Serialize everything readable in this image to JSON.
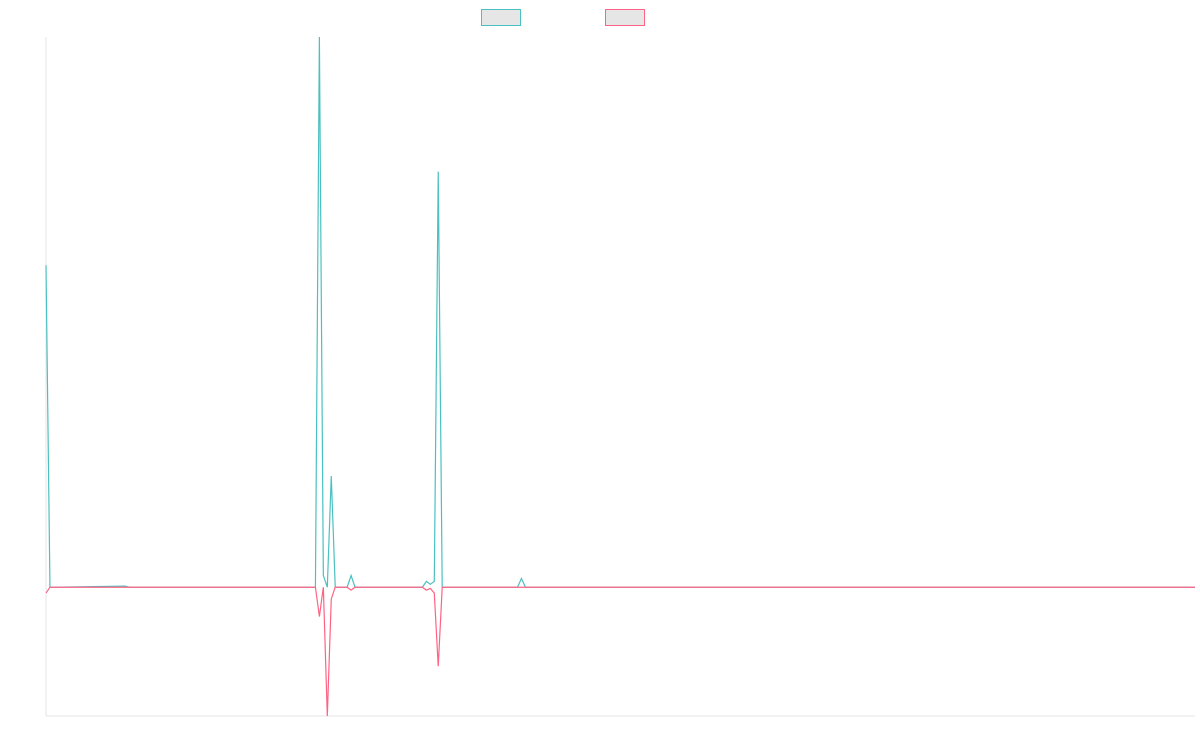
{
  "chart_data": {
    "type": "line",
    "title": "",
    "xlabel": "",
    "ylabel": "",
    "legend_position": "top-center",
    "grid": false,
    "ylim": [
      -2.2,
      9.4
    ],
    "xlim": [
      0,
      290
    ],
    "series": [
      {
        "color": "#4bc0c0",
        "fill": "#e6e6e6",
        "points": [
          [
            0,
            5.5
          ],
          [
            1,
            0
          ],
          [
            2,
            0
          ],
          [
            20,
            0.02
          ],
          [
            21,
            0
          ],
          [
            68,
            0
          ],
          [
            69,
            9.4
          ],
          [
            70,
            0.2
          ],
          [
            71,
            0
          ],
          [
            72,
            1.9
          ],
          [
            73,
            0
          ],
          [
            76,
            0
          ],
          [
            77,
            0.2
          ],
          [
            78,
            0
          ],
          [
            95,
            0
          ],
          [
            96,
            0.1
          ],
          [
            97,
            0.05
          ],
          [
            98,
            0.1
          ],
          [
            99,
            7.1
          ],
          [
            100,
            0
          ],
          [
            119,
            0
          ],
          [
            120,
            0.15
          ],
          [
            121,
            0
          ],
          [
            290,
            0
          ]
        ]
      },
      {
        "color": "#ff6384",
        "fill": "#e6e6e6",
        "points": [
          [
            0,
            -0.1
          ],
          [
            1,
            0
          ],
          [
            2,
            0
          ],
          [
            68,
            0
          ],
          [
            69,
            -0.5
          ],
          [
            70,
            0
          ],
          [
            71,
            -2.2
          ],
          [
            72,
            -0.2
          ],
          [
            73,
            0
          ],
          [
            76,
            0
          ],
          [
            77,
            -0.05
          ],
          [
            78,
            0
          ],
          [
            95,
            0
          ],
          [
            96,
            -0.05
          ],
          [
            97,
            -0.02
          ],
          [
            98,
            -0.1
          ],
          [
            99,
            -1.35
          ],
          [
            100,
            0
          ],
          [
            290,
            0
          ]
        ]
      }
    ]
  }
}
